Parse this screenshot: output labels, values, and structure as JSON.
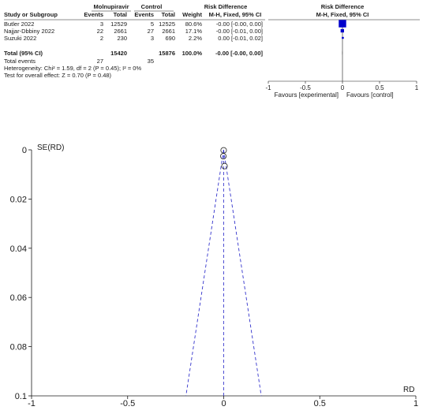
{
  "forest": {
    "headers": {
      "study": "Study or Subgroup",
      "group1": "Molnupiravir",
      "group2": "Control",
      "events": "Events",
      "total": "Total",
      "weight": "Weight",
      "rd_title": "Risk Difference",
      "rd_method": "M-H, Fixed, 95% CI"
    },
    "studies": [
      {
        "name": "Butler 2022",
        "e1": "3",
        "t1": "12529",
        "e2": "5",
        "t2": "12525",
        "weight": "80.6%",
        "ci": "-0.00 [-0.00, 0.00]"
      },
      {
        "name": "Najjar-Dbbiny 2022",
        "e1": "22",
        "t1": "2661",
        "e2": "27",
        "t2": "2661",
        "weight": "17.1%",
        "ci": "-0.00 [-0.01, 0.00]"
      },
      {
        "name": "Suzuki 2022",
        "e1": "2",
        "t1": "230",
        "e2": "3",
        "t2": "690",
        "weight": "2.2%",
        "ci": "0.00 [-0.01, 0.02]"
      }
    ],
    "total": {
      "label": "Total (95% CI)",
      "t1": "15420",
      "t2": "15876",
      "weight": "100.0%",
      "ci": "-0.00 [-0.00, 0.00]"
    },
    "total_events": {
      "label": "Total events",
      "e1": "27",
      "e2": "35"
    },
    "heterogeneity": "Heterogeneity: Chi² = 1.59, df = 2 (P = 0.45); I² = 0%",
    "overall_effect": "Test for overall effect: Z = 0.70 (P = 0.48)",
    "favours_left": "Favours [experimental]",
    "favours_right": "Favours [control]",
    "axis_ticks": [
      "-1",
      "-0.5",
      "0",
      "0.5",
      "1"
    ]
  },
  "chart_data": [
    {
      "type": "forest",
      "x": [
        -1,
        -0.5,
        0,
        0.5,
        1
      ],
      "xlim": [
        -1,
        1
      ],
      "points": [
        {
          "study": "Butler 2022",
          "rd": -0.0002,
          "lo": -0.0009,
          "hi": 0.0005,
          "weight": 80.6
        },
        {
          "study": "Najjar-Dbbiny 2022",
          "rd": -0.0019,
          "lo": -0.01,
          "hi": 0.0045,
          "weight": 17.1
        },
        {
          "study": "Suzuki 2022",
          "rd": 0.0043,
          "lo": -0.01,
          "hi": 0.02,
          "weight": 2.2
        }
      ],
      "pooled": {
        "rd": -0.0005,
        "lo": -0.0018,
        "hi": 0.0009
      },
      "color": "#0000cc"
    },
    {
      "type": "scatter",
      "xlabel": "RD",
      "ylabel": "SE(RD)",
      "xlim": [
        -1,
        1
      ],
      "ylim": [
        0,
        0.1
      ],
      "y_reversed": true,
      "x_ticks": [
        "-1",
        "-0.5",
        "0",
        "0.5",
        "1"
      ],
      "y_ticks": [
        "0",
        "0.02",
        "0.04",
        "0.06",
        "0.08",
        "0.1"
      ],
      "points": [
        {
          "x": -0.0002,
          "y": 0.0002
        },
        {
          "x": -0.0019,
          "y": 0.0026
        },
        {
          "x": 0.0043,
          "y": 0.0066
        }
      ],
      "pooled_rd": -0.0005,
      "funnel_color": "#3333cc"
    }
  ]
}
